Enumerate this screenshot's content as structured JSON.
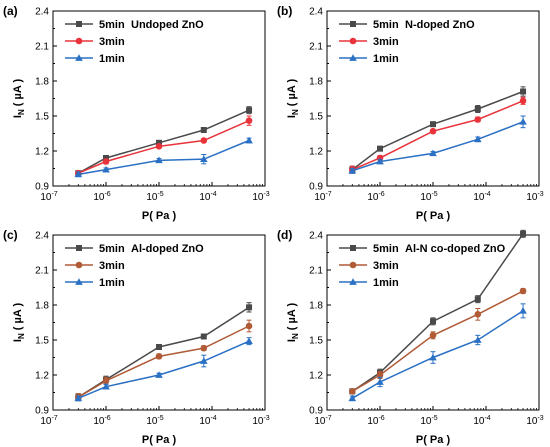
{
  "colors": {
    "5min": "#4a4a4a",
    "3min": "#e8333a",
    "3min_alt": "#b05a36",
    "1min": "#2a70c4",
    "5min_line_d": "#4a4a4a"
  },
  "chart_data": [
    {
      "panel": "(a)",
      "type": "line",
      "title": "Undoped ZnO",
      "xlabel": "P( Pa )",
      "ylabel": "I_N ( µA )",
      "x_scale": "log",
      "xlim": [
        1e-07,
        0.001
      ],
      "ylim": [
        0.9,
        2.4
      ],
      "yticks": [
        "0.9",
        "1.2",
        "1.5",
        "1.8",
        "2.1",
        "2.4"
      ],
      "xtick_exponents": [
        "-7",
        "-6",
        "-5",
        "-4",
        "-3"
      ],
      "x": [
        3e-07,
        1e-06,
        1e-05,
        7e-05,
        0.0005
      ],
      "legend_position": "top-left",
      "series": [
        {
          "name": "5min",
          "color": "#4a4a4a",
          "marker": "square",
          "values": [
            1.01,
            1.14,
            1.27,
            1.38,
            1.55
          ],
          "err": [
            0.02,
            0.02,
            0.015,
            0.015,
            0.03
          ]
        },
        {
          "name": "3min",
          "color": "#e8333a",
          "marker": "circle",
          "values": [
            1.01,
            1.11,
            1.24,
            1.29,
            1.46
          ],
          "err": [
            0.02,
            0.02,
            0.015,
            0.015,
            0.04
          ]
        },
        {
          "name": "1min",
          "color": "#2a70c4",
          "marker": "triangle",
          "values": [
            1.0,
            1.04,
            1.12,
            1.13,
            1.29
          ],
          "err": [
            0.02,
            0.015,
            0.015,
            0.04,
            0.02
          ]
        }
      ]
    },
    {
      "panel": "(b)",
      "type": "line",
      "title": "N-doped ZnO",
      "xlabel": "P( Pa )",
      "ylabel": "I_N ( µA )",
      "x_scale": "log",
      "xlim": [
        1e-07,
        0.001
      ],
      "ylim": [
        0.9,
        2.4
      ],
      "yticks": [
        "0.9",
        "1.2",
        "1.5",
        "1.8",
        "2.1",
        "2.4"
      ],
      "xtick_exponents": [
        "-7",
        "-6",
        "-5",
        "-4",
        "-3"
      ],
      "x": [
        3e-07,
        1e-06,
        1e-05,
        7e-05,
        0.0005
      ],
      "legend_position": "top-left",
      "series": [
        {
          "name": "5min",
          "color": "#4a4a4a",
          "marker": "square",
          "values": [
            1.04,
            1.22,
            1.43,
            1.56,
            1.71
          ],
          "err": [
            0.03,
            0.02,
            0.015,
            0.03,
            0.04
          ]
        },
        {
          "name": "3min",
          "color": "#e8333a",
          "marker": "circle",
          "values": [
            1.04,
            1.14,
            1.37,
            1.47,
            1.63
          ],
          "err": [
            0.03,
            0.02,
            0.015,
            0.02,
            0.03
          ]
        },
        {
          "name": "1min",
          "color": "#2a70c4",
          "marker": "triangle",
          "values": [
            1.03,
            1.11,
            1.18,
            1.3,
            1.45
          ],
          "err": [
            0.02,
            0.015,
            0.015,
            0.02,
            0.05
          ]
        }
      ]
    },
    {
      "panel": "(c)",
      "type": "line",
      "title": "Al-doped ZnO",
      "xlabel": "P( Pa )",
      "ylabel": "I_N ( µA )",
      "x_scale": "log",
      "xlim": [
        1e-07,
        0.001
      ],
      "ylim": [
        0.9,
        2.4
      ],
      "yticks": [
        "0.9",
        "1.2",
        "1.5",
        "1.8",
        "2.1",
        "2.4"
      ],
      "xtick_exponents": [
        "-7",
        "-6",
        "-5",
        "-4",
        "-3"
      ],
      "x": [
        3e-07,
        1e-06,
        1e-05,
        7e-05,
        0.0005
      ],
      "legend_position": "top-left",
      "series": [
        {
          "name": "5min",
          "color": "#4a4a4a",
          "marker": "square",
          "values": [
            1.01,
            1.16,
            1.44,
            1.53,
            1.78
          ],
          "err": [
            0.03,
            0.03,
            0.02,
            0.02,
            0.04
          ]
        },
        {
          "name": "3min",
          "color": "#b05a36",
          "marker": "circle",
          "values": [
            1.01,
            1.15,
            1.36,
            1.43,
            1.62
          ],
          "err": [
            0.03,
            0.03,
            0.02,
            0.02,
            0.05
          ]
        },
        {
          "name": "1min",
          "color": "#2a70c4",
          "marker": "triangle",
          "values": [
            1.0,
            1.1,
            1.2,
            1.32,
            1.49
          ],
          "err": [
            0.02,
            0.02,
            0.015,
            0.05,
            0.03
          ]
        }
      ]
    },
    {
      "panel": "(d)",
      "type": "line",
      "title": "Al-N co-doped ZnO",
      "xlabel": "P( Pa )",
      "ylabel": "I_N ( µA )",
      "x_scale": "log",
      "xlim": [
        1e-07,
        0.001
      ],
      "ylim": [
        0.9,
        2.4
      ],
      "yticks": [
        "0.9",
        "1.2",
        "1.5",
        "1.8",
        "2.1",
        "2.4"
      ],
      "xtick_exponents": [
        "-7",
        "-6",
        "-5",
        "-4",
        "-3"
      ],
      "x": [
        3e-07,
        1e-06,
        1e-05,
        7e-05,
        0.0005
      ],
      "legend_position": "top-left",
      "series": [
        {
          "name": "5min",
          "color": "#4a4a4a",
          "marker": "square",
          "values": [
            1.06,
            1.22,
            1.66,
            1.85,
            2.41
          ],
          "err": [
            0.02,
            0.03,
            0.03,
            0.03,
            0.03
          ]
        },
        {
          "name": "3min",
          "color": "#b05a36",
          "marker": "circle",
          "values": [
            1.06,
            1.2,
            1.54,
            1.72,
            1.92
          ],
          "err": [
            0.02,
            0.03,
            0.03,
            0.05,
            0.02
          ]
        },
        {
          "name": "1min",
          "color": "#2a70c4",
          "marker": "triangle",
          "values": [
            1.0,
            1.14,
            1.35,
            1.5,
            1.75
          ],
          "err": [
            0.02,
            0.04,
            0.05,
            0.04,
            0.06
          ]
        }
      ]
    }
  ]
}
